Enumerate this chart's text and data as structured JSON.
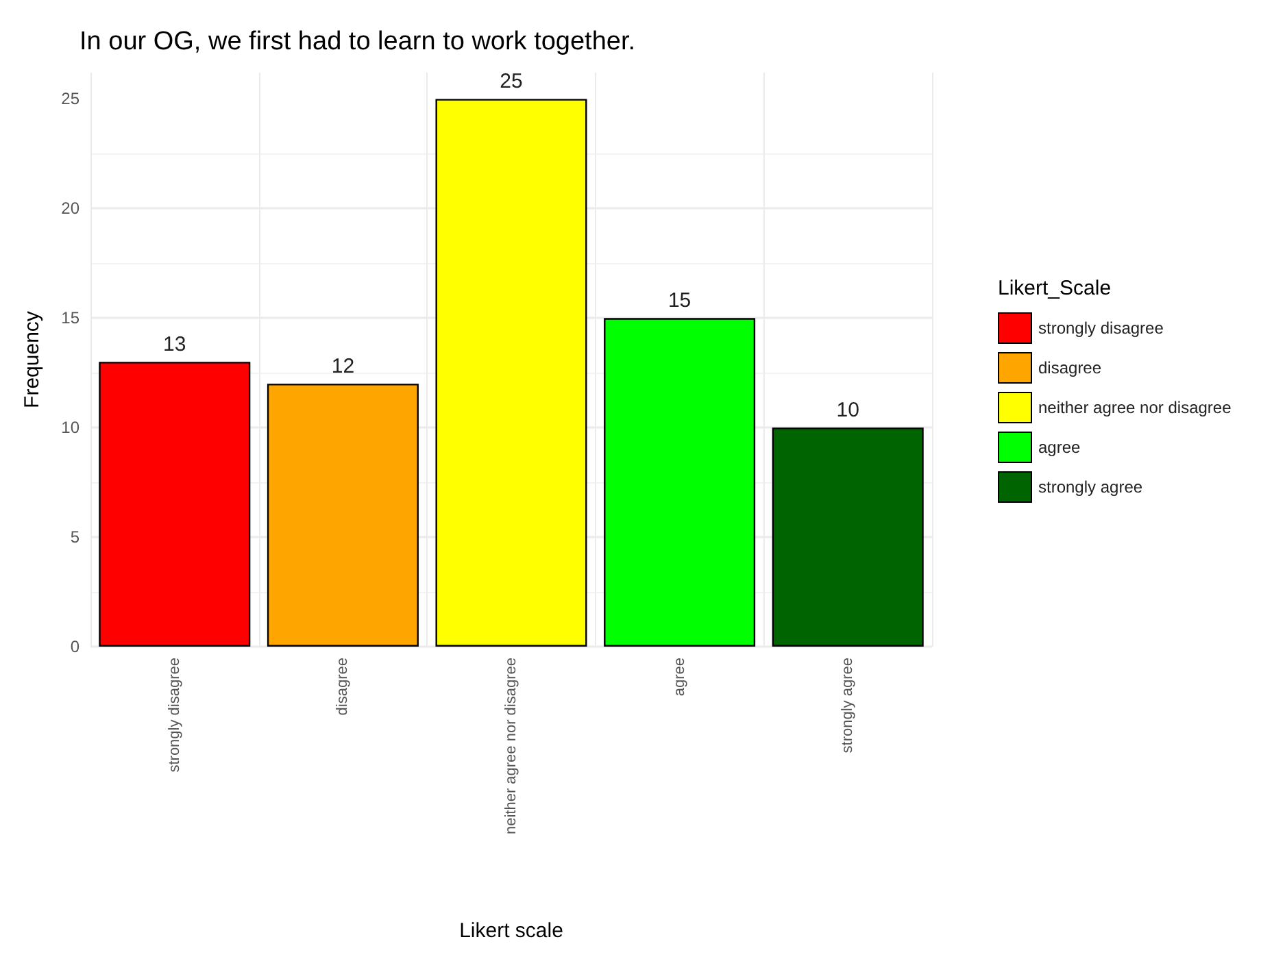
{
  "chart_data": {
    "type": "bar",
    "title": "In our OG, we first had to learn to work together.",
    "xlabel": "Likert scale",
    "ylabel": "Frequency",
    "legend_title": "Likert_Scale",
    "categories": [
      "strongly disagree",
      "disagree",
      "neither agree nor disagree",
      "agree",
      "strongly agree"
    ],
    "series": [
      {
        "name": "strongly disagree",
        "color": "#ff0000",
        "values": [
          13,
          null,
          null,
          null,
          null
        ]
      },
      {
        "name": "disagree",
        "color": "#ffa500",
        "values": [
          null,
          12,
          null,
          null,
          null
        ]
      },
      {
        "name": "neither agree nor disagree",
        "color": "#ffff00",
        "values": [
          null,
          null,
          25,
          null,
          null
        ]
      },
      {
        "name": "agree",
        "color": "#00ff00",
        "values": [
          null,
          null,
          null,
          15,
          null
        ]
      },
      {
        "name": "strongly agree",
        "color": "#006400",
        "values": [
          null,
          null,
          null,
          null,
          10
        ]
      }
    ],
    "ylim": [
      0,
      26.2
    ],
    "yticks": [
      0,
      5,
      10,
      15,
      20,
      25
    ],
    "grid": true,
    "legend": "right",
    "data_labels": true
  }
}
